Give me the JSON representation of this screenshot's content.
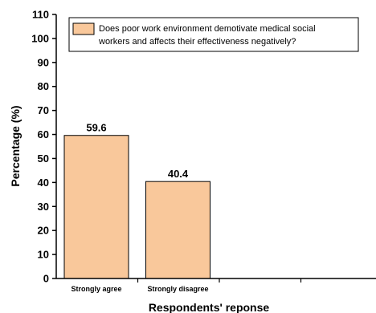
{
  "chart_data": {
    "type": "bar",
    "categories": [
      "Strongly agree",
      "Strongly disagree"
    ],
    "values": [
      59.6,
      40.4
    ],
    "data_labels": [
      "59.6",
      "40.4"
    ],
    "x_slots": 4,
    "ylim": [
      0,
      110
    ],
    "yticks": [
      0,
      10,
      20,
      30,
      40,
      50,
      60,
      70,
      80,
      90,
      100,
      110
    ],
    "xlabel": "Respondents' reponse",
    "ylabel": "Percentage (%)",
    "legend": {
      "position": "top",
      "line1": "Does poor work environment demotivate medical social",
      "line2": "workers and affects their effectiveness negatively?"
    },
    "bar_color": "#F9C89B",
    "grid": false
  }
}
